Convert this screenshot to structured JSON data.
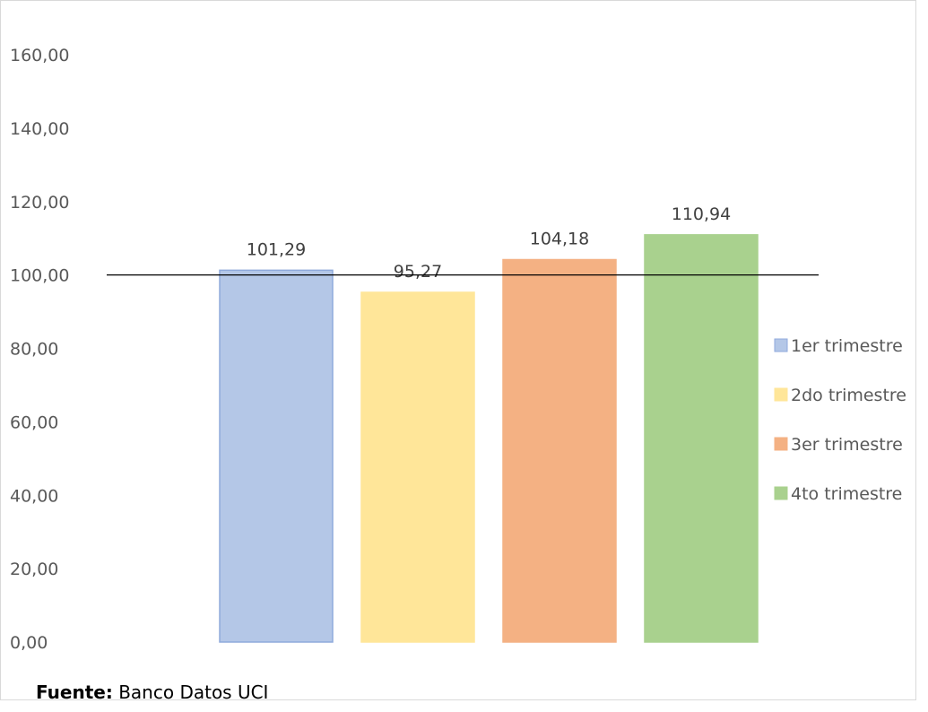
{
  "chart_data": {
    "type": "bar",
    "categories": [
      "1er trimestre",
      "2do trimestre",
      "3er trimestre",
      "4to trimestre"
    ],
    "values": [
      101.29,
      95.27,
      104.18,
      110.94
    ],
    "value_labels": [
      "101,29",
      "95,27",
      "104,18",
      "110,94"
    ],
    "colors": [
      "#b4c7e7",
      "#ffe699",
      "#f4b183",
      "#a9d18e"
    ],
    "bar_border_colors": [
      "#8faadc",
      "#ffe699",
      "#f4b183",
      "#a9d18e"
    ],
    "ylim": [
      0,
      160
    ],
    "y_ticks": [
      0,
      20,
      40,
      60,
      80,
      100,
      120,
      140,
      160
    ],
    "y_tick_labels": [
      "0,00",
      "20,00",
      "40,00",
      "60,00",
      "80,00",
      "100,00",
      "120,00",
      "140,00",
      "160,00"
    ],
    "reference_line": 100,
    "legend_position": "right",
    "grid": false,
    "xlabel": "",
    "ylabel": ""
  },
  "source": {
    "label": "Fuente:",
    "text": " Banco Datos UCI"
  }
}
